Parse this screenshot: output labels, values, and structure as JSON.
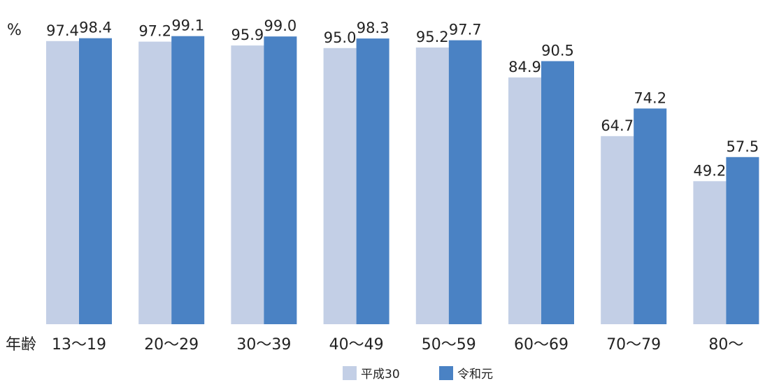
{
  "chart_data": {
    "type": "bar",
    "unit": "%",
    "xlabel": "年齢",
    "categories": [
      "13～19",
      "20～29",
      "30～39",
      "40～49",
      "50～59",
      "60～69",
      "70～79",
      "80～"
    ],
    "series": [
      {
        "name": "平成30",
        "color": "#c3cfe6",
        "values": [
          97.4,
          97.2,
          95.9,
          95.0,
          95.2,
          84.9,
          64.7,
          49.2
        ],
        "labels": [
          "97.4",
          "97.2",
          "95.9",
          "95.0",
          "95.2",
          "84.9",
          "64.7",
          "49.2"
        ]
      },
      {
        "name": "令和元",
        "color": "#4a82c4",
        "values": [
          98.4,
          99.1,
          99.0,
          98.3,
          97.7,
          90.5,
          74.2,
          57.5
        ],
        "labels": [
          "98.4",
          "99.1",
          "99.0",
          "98.3",
          "97.7",
          "90.5",
          "74.2",
          "57.5"
        ]
      }
    ],
    "ylim": [
      0,
      100
    ],
    "grid": false,
    "legend_position": "bottom"
  }
}
